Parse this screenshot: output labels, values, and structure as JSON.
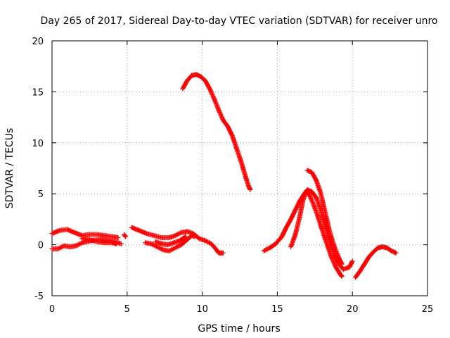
{
  "chart_data": {
    "type": "scatter",
    "title": "Day 265 of 2017, Sidereal Day-to-day VTEC variation (SDTVAR) for receiver unro",
    "xlabel": "GPS time / hours",
    "ylabel": "SDTVAR / TECUs",
    "xlim": [
      0,
      25
    ],
    "ylim": [
      -5,
      20
    ],
    "xticks": [
      0,
      5,
      10,
      15,
      20,
      25
    ],
    "yticks": [
      -5,
      0,
      5,
      10,
      15,
      20
    ],
    "grid": true,
    "marker": "plus",
    "color": "#ff0000",
    "tracks": [
      {
        "name": "track-1",
        "points": [
          [
            0,
            1.1
          ],
          [
            0.5,
            1.4
          ],
          [
            1.0,
            1.5
          ],
          [
            1.5,
            1.2
          ],
          [
            2.0,
            0.9
          ],
          [
            2.5,
            1.0
          ],
          [
            3.0,
            1.0
          ],
          [
            3.5,
            0.9
          ],
          [
            4.0,
            0.8
          ],
          [
            4.4,
            0.7
          ]
        ]
      },
      {
        "name": "track-2",
        "points": [
          [
            0,
            -0.4
          ],
          [
            0.4,
            -0.4
          ],
          [
            0.8,
            -0.1
          ],
          [
            1.2,
            -0.2
          ],
          [
            1.6,
            -0.1
          ],
          [
            2.0,
            0.2
          ],
          [
            2.6,
            0.4
          ],
          [
            3.2,
            0.5
          ],
          [
            3.8,
            0.4
          ],
          [
            4.4,
            0.2
          ],
          [
            4.6,
            0.1
          ]
        ]
      },
      {
        "name": "track-3",
        "points": [
          [
            2.0,
            0.6
          ],
          [
            2.5,
            0.5
          ],
          [
            3.0,
            0.3
          ],
          [
            3.5,
            0.2
          ],
          [
            4.0,
            0.2
          ],
          [
            4.3,
            0.1
          ]
        ]
      },
      {
        "name": "track-4",
        "points": [
          [
            4.8,
            1.0
          ],
          [
            4.9,
            0.8
          ]
        ]
      },
      {
        "name": "track-5",
        "points": [
          [
            5.3,
            1.7
          ],
          [
            5.8,
            1.4
          ],
          [
            6.3,
            1.1
          ],
          [
            6.8,
            0.9
          ],
          [
            7.3,
            0.7
          ],
          [
            7.8,
            0.7
          ],
          [
            8.2,
            0.9
          ],
          [
            8.6,
            1.2
          ],
          [
            9.0,
            1.3
          ],
          [
            9.4,
            1.1
          ],
          [
            9.8,
            0.6
          ],
          [
            10.2,
            0.4
          ],
          [
            10.6,
            0.1
          ],
          [
            10.9,
            -0.4
          ],
          [
            11.1,
            -0.8
          ],
          [
            11.4,
            -0.8
          ]
        ]
      },
      {
        "name": "track-6",
        "points": [
          [
            6.2,
            0.2
          ],
          [
            6.6,
            0.1
          ],
          [
            7.0,
            -0.2
          ],
          [
            7.4,
            -0.5
          ],
          [
            7.8,
            -0.6
          ],
          [
            8.2,
            -0.3
          ],
          [
            8.6,
            0.0
          ],
          [
            9.0,
            0.5
          ],
          [
            9.3,
            0.9
          ],
          [
            9.5,
            0.8
          ]
        ]
      },
      {
        "name": "track-7",
        "points": [
          [
            6.9,
            0.3
          ],
          [
            7.3,
            0.1
          ],
          [
            7.7,
            0.0
          ],
          [
            8.1,
            0.2
          ],
          [
            8.5,
            0.4
          ],
          [
            8.9,
            0.8
          ]
        ]
      },
      {
        "name": "track-8",
        "points": [
          [
            8.7,
            15.3
          ],
          [
            9.0,
            16.1
          ],
          [
            9.3,
            16.6
          ],
          [
            9.6,
            16.7
          ],
          [
            9.9,
            16.5
          ],
          [
            10.2,
            16.1
          ],
          [
            10.5,
            15.3
          ],
          [
            10.8,
            14.3
          ],
          [
            11.1,
            13.2
          ],
          [
            11.4,
            12.2
          ],
          [
            11.7,
            11.6
          ],
          [
            12.0,
            10.7
          ],
          [
            12.3,
            9.4
          ],
          [
            12.6,
            8.1
          ],
          [
            12.9,
            6.6
          ],
          [
            13.1,
            5.7
          ],
          [
            13.2,
            5.4
          ]
        ]
      },
      {
        "name": "track-9",
        "points": [
          [
            14.1,
            -0.6
          ],
          [
            14.5,
            -0.3
          ],
          [
            14.9,
            0.1
          ],
          [
            15.3,
            0.8
          ],
          [
            15.6,
            1.7
          ],
          [
            15.9,
            2.5
          ],
          [
            16.2,
            3.4
          ],
          [
            16.5,
            4.3
          ],
          [
            16.8,
            5.0
          ],
          [
            17.0,
            5.4
          ],
          [
            17.3,
            5.2
          ],
          [
            17.6,
            4.6
          ],
          [
            17.9,
            3.4
          ],
          [
            18.2,
            1.8
          ],
          [
            18.5,
            0.3
          ],
          [
            18.8,
            -1.0
          ],
          [
            19.1,
            -1.9
          ],
          [
            19.4,
            -2.4
          ],
          [
            19.8,
            -2.2
          ],
          [
            20.0,
            -1.6
          ]
        ]
      },
      {
        "name": "track-10",
        "points": [
          [
            15.9,
            -0.2
          ],
          [
            16.2,
            1.0
          ],
          [
            16.5,
            2.8
          ],
          [
            16.7,
            4.3
          ],
          [
            16.9,
            5.2
          ],
          [
            17.1,
            5.0
          ],
          [
            17.4,
            4.0
          ],
          [
            17.7,
            2.8
          ],
          [
            18.0,
            1.4
          ],
          [
            18.3,
            0.1
          ],
          [
            18.6,
            -1.2
          ],
          [
            18.9,
            -2.2
          ],
          [
            19.2,
            -2.9
          ],
          [
            19.3,
            -3.1
          ]
        ]
      },
      {
        "name": "track-11",
        "points": [
          [
            17.0,
            7.3
          ],
          [
            17.3,
            7.1
          ],
          [
            17.6,
            6.3
          ],
          [
            17.9,
            5.0
          ],
          [
            18.2,
            3.1
          ],
          [
            18.5,
            1.2
          ],
          [
            18.8,
            -0.2
          ],
          [
            19.1,
            -1.3
          ],
          [
            19.3,
            -1.9
          ]
        ]
      },
      {
        "name": "track-12",
        "points": [
          [
            20.2,
            -3.2
          ],
          [
            20.5,
            -2.6
          ],
          [
            20.8,
            -1.9
          ],
          [
            21.1,
            -1.2
          ],
          [
            21.4,
            -0.7
          ],
          [
            21.7,
            -0.3
          ],
          [
            22.0,
            -0.2
          ],
          [
            22.3,
            -0.3
          ],
          [
            22.6,
            -0.6
          ],
          [
            22.9,
            -0.8
          ]
        ]
      }
    ]
  }
}
